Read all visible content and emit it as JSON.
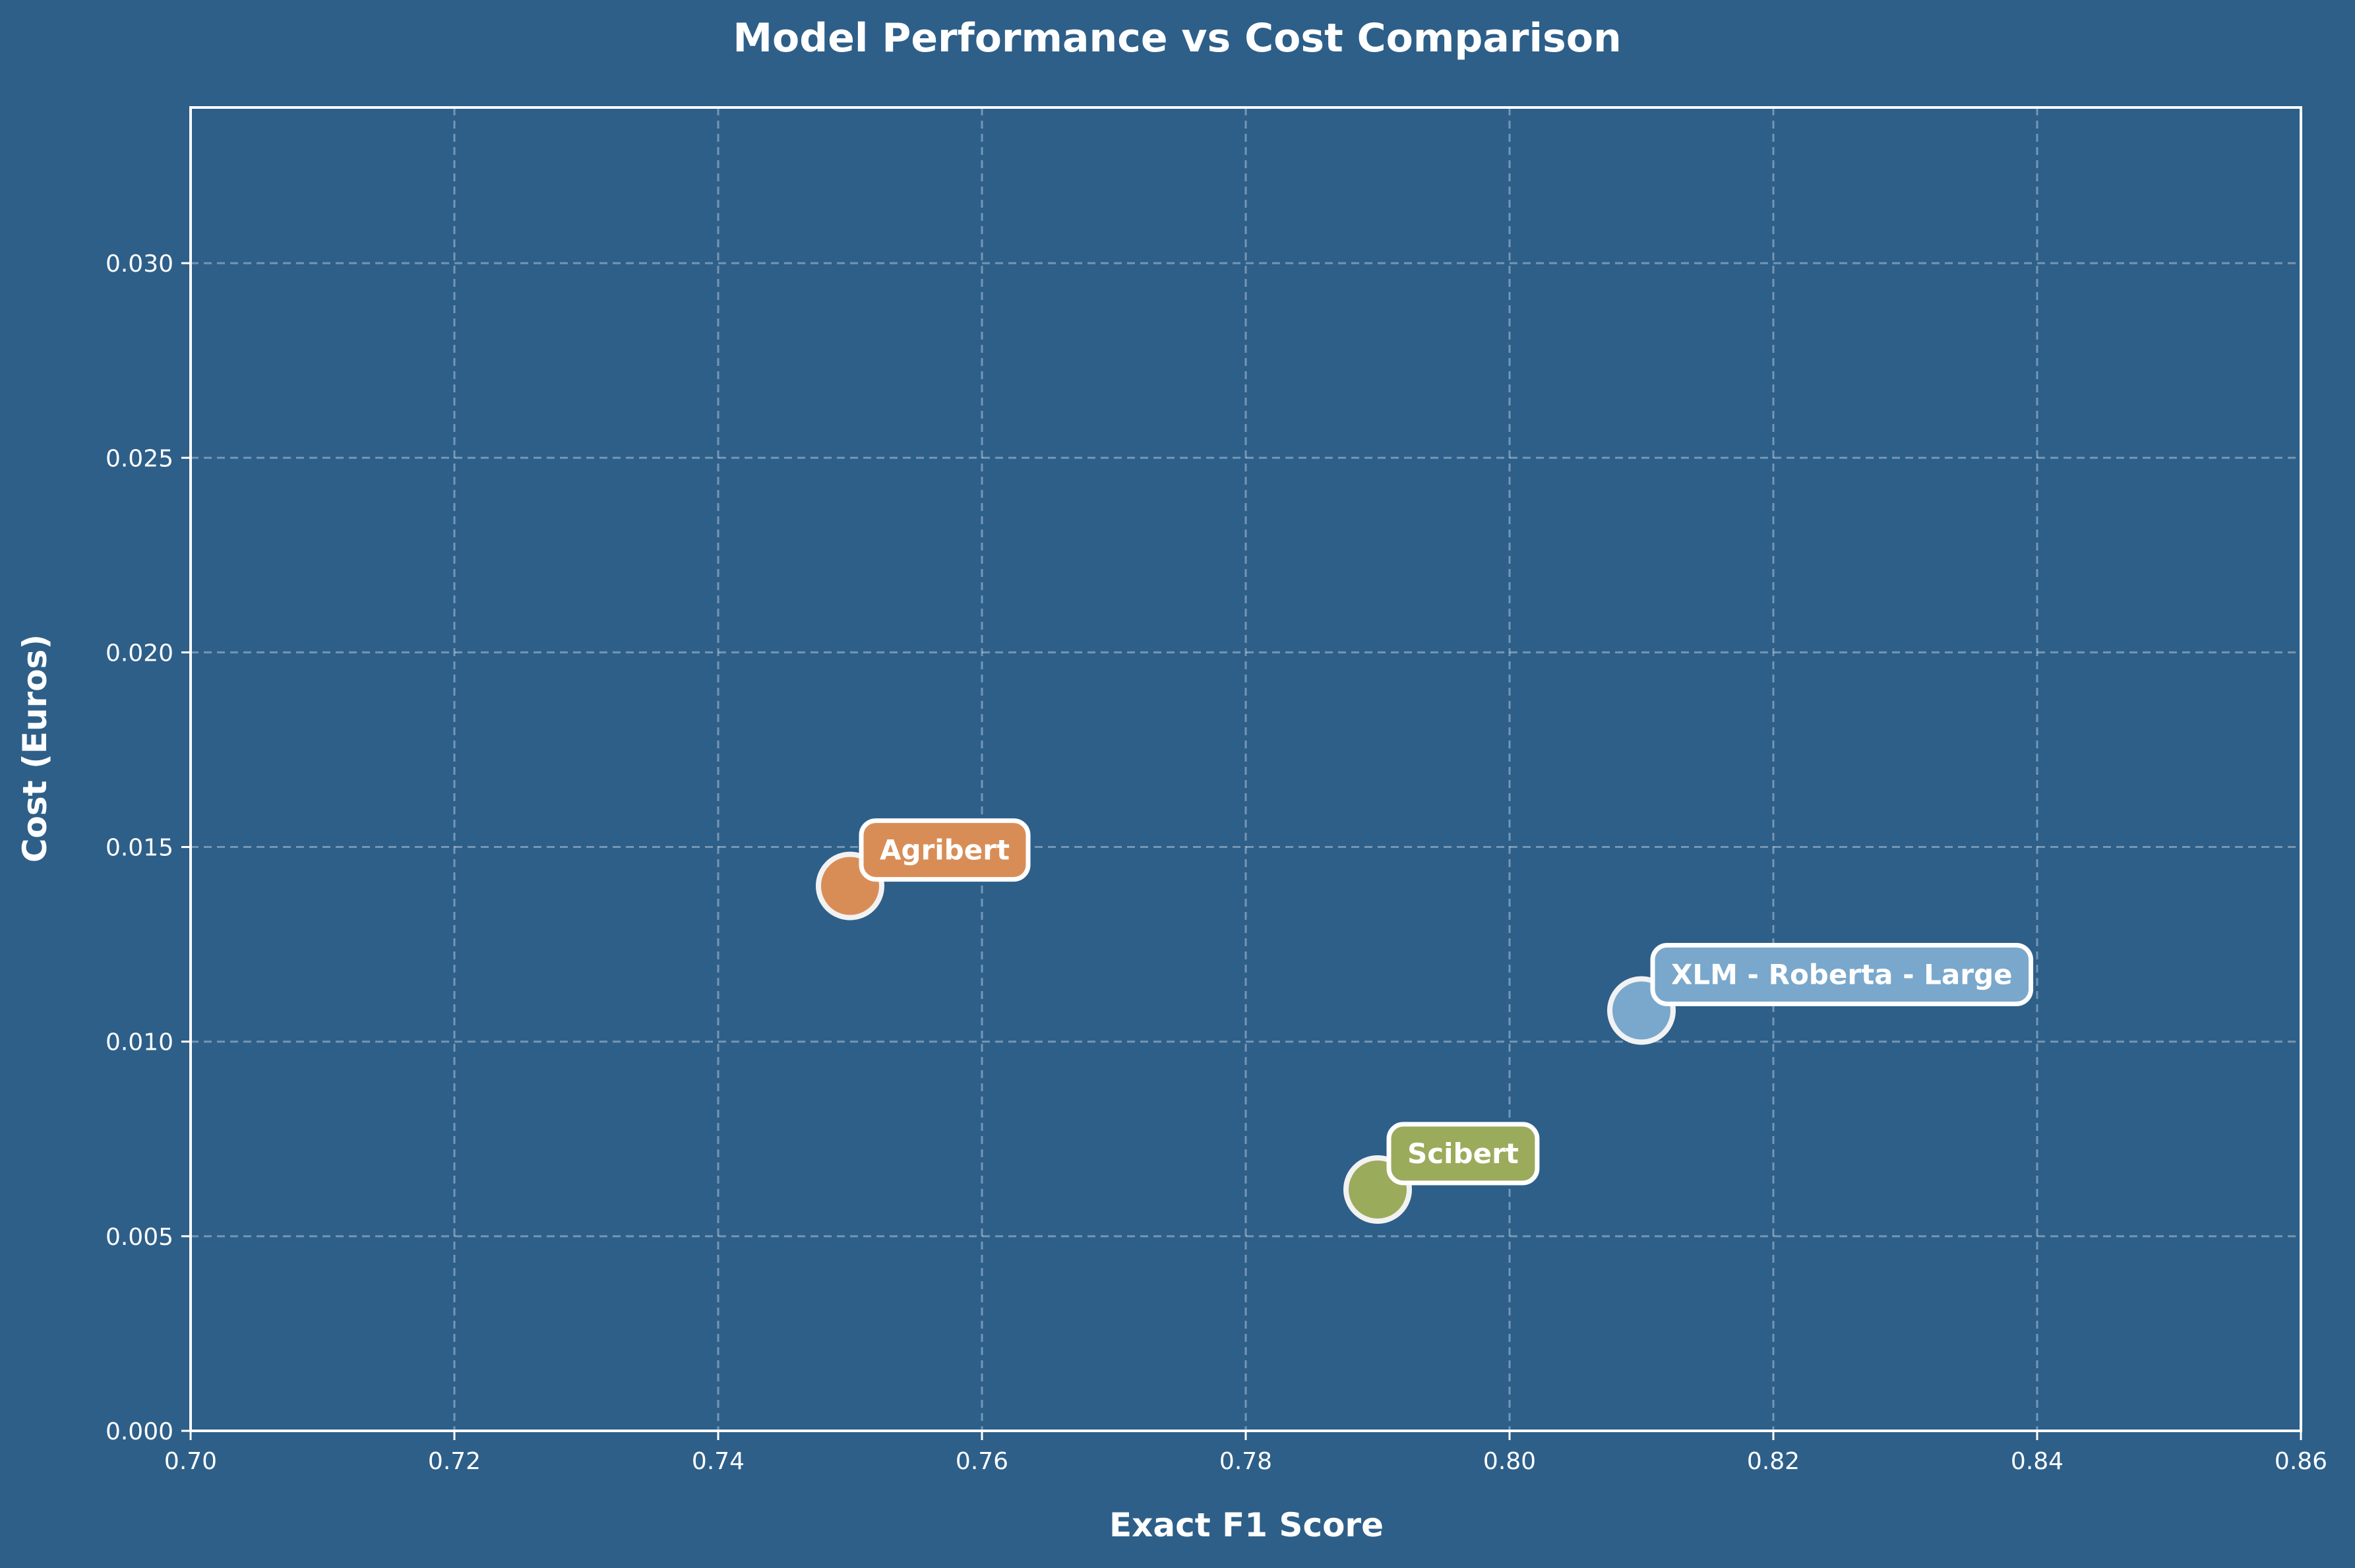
{
  "chart_data": {
    "type": "scatter",
    "title": "Model Performance vs Cost Comparison",
    "xlabel": "Exact F1 Score",
    "ylabel": "Cost (Euros)",
    "xlim": [
      0.7,
      0.86
    ],
    "ylim": [
      0.0,
      0.034
    ],
    "x_ticks": [
      "0.70",
      "0.72",
      "0.74",
      "0.76",
      "0.78",
      "0.80",
      "0.82",
      "0.84",
      "0.86"
    ],
    "y_ticks": [
      "0.000",
      "0.005",
      "0.010",
      "0.015",
      "0.020",
      "0.025",
      "0.030"
    ],
    "grid": true,
    "points": [
      {
        "name": "Agribert",
        "x": 0.75,
        "y": 0.014,
        "color": "#d98d56"
      },
      {
        "name": "Scibert",
        "x": 0.79,
        "y": 0.0062,
        "color": "#9bab5c"
      },
      {
        "name": "XLM - Roberta - Large",
        "x": 0.81,
        "y": 0.0108,
        "color": "#7aa8cc"
      }
    ]
  },
  "colors": {
    "background": "#2d5f89",
    "axis": "#ffffff",
    "text": "#ffffff"
  }
}
